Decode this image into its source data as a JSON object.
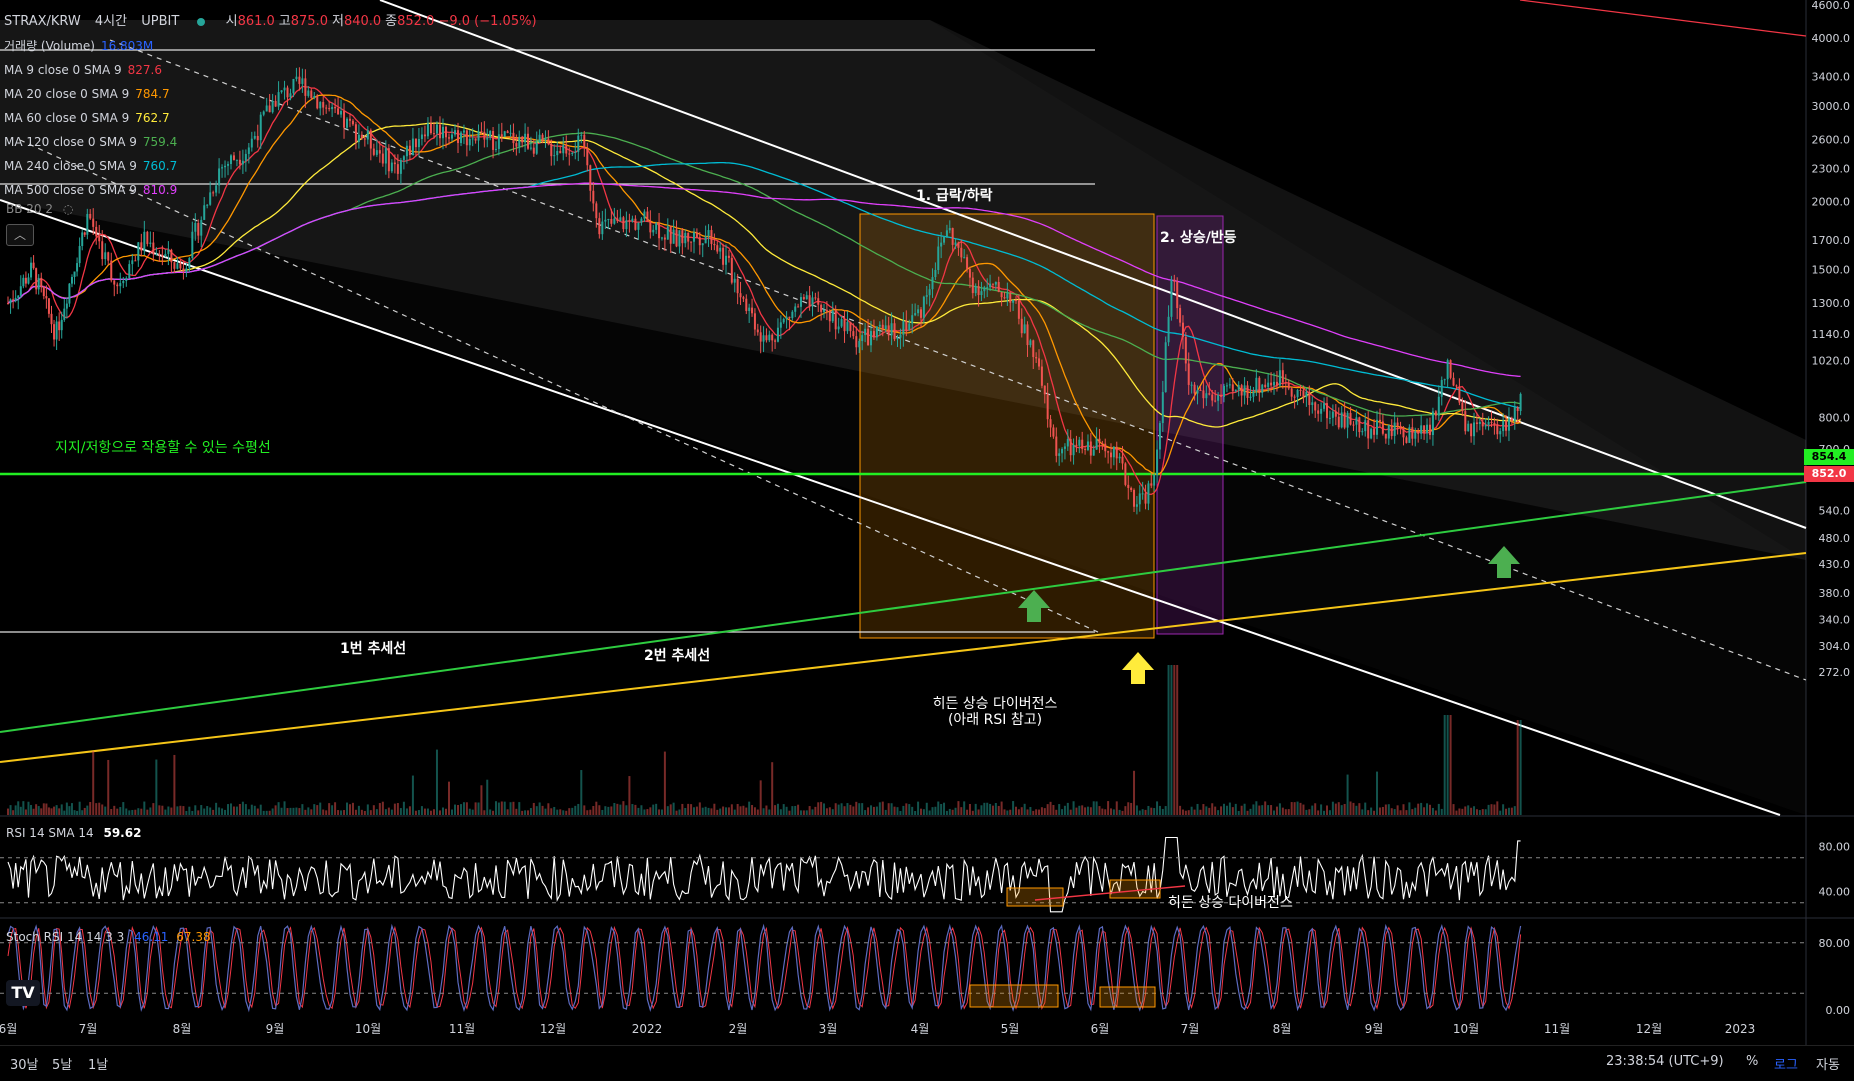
{
  "header": {
    "symbol": "STRAX/KRW",
    "interval": "4시간",
    "exchange": "UPBIT",
    "ohlc": [
      {
        "key": "시",
        "value": "861.0"
      },
      {
        "key": "고",
        "value": "875.0"
      },
      {
        "key": "저",
        "value": "840.0"
      },
      {
        "key": "종",
        "value": "852.0"
      }
    ],
    "change": "−9.0 (−1.05%)"
  },
  "legend": [
    {
      "label": "거래량 (Volume)",
      "value": "16.803M",
      "color": "#2962ff"
    },
    {
      "label": "MA 9 close 0 SMA 9",
      "value": "827.6",
      "color": "#f23645"
    },
    {
      "label": "MA 20 close 0 SMA 9",
      "value": "784.7",
      "color": "#ff9800"
    },
    {
      "label": "MA 60 close 0 SMA 9",
      "value": "762.7",
      "color": "#ffeb3b"
    },
    {
      "label": "MA 120 close 0 SMA 9",
      "value": "759.4",
      "color": "#4caf50"
    },
    {
      "label": "MA 240 close 0 SMA 9",
      "value": "760.7",
      "color": "#00bcd4"
    },
    {
      "label": "MA 500 close 0 SMA 9",
      "value": "810.9",
      "color": "#e040fb"
    }
  ],
  "bb_label": "BB 20 2",
  "rsi_header": {
    "label": "RSI 14 SMA 14",
    "value": "59.62"
  },
  "stoch_header": {
    "label": "Stoch RSI 14 14 3 3",
    "k": "46.11",
    "d": "67.38"
  },
  "annotations": {
    "crash": "1. 급락/하락",
    "rebound": "2. 상승/반등",
    "support": "지지/저항으로 작용할 수 있는 수평선",
    "trend1": "1번 추세선",
    "trend2": "2번 추세선",
    "divergence1": "히든 상승 다이버전스",
    "divergence2": "(아래 RSI 참고)",
    "divergence_rsi": "히든 상승 다이버전스"
  },
  "price_tags": {
    "upper": "854.4",
    "last": "852.0"
  },
  "bottom_bar": {
    "ranges": [
      "30날",
      "5날",
      "1날"
    ],
    "clock": "23:38:54 (UTC+9)",
    "percent": "%",
    "log": "로그",
    "auto": "자동"
  },
  "chart_data": {
    "type": "candlestick",
    "price_axis": {
      "scale": "log",
      "ticks": [
        "4600.0",
        "4000.0",
        "3400.0",
        "3000.0",
        "2600.0",
        "2300.0",
        "2000.0",
        "1700.0",
        "1500.0",
        "1300.0",
        "1140.0",
        "1020.0",
        "800.0",
        "700.0",
        "620.0",
        "540.0",
        "480.0",
        "430.0",
        "380.0",
        "340.0",
        "304.0",
        "272.0"
      ]
    },
    "time_axis": [
      "6월",
      "7월",
      "8월",
      "9월",
      "10월",
      "11월",
      "12월",
      "2022",
      "2월",
      "3월",
      "4월",
      "5월",
      "6월",
      "7월",
      "8월",
      "9월",
      "10월",
      "11월",
      "12월",
      "2023"
    ],
    "rsi_axis": {
      "ticks": [
        "80.00",
        "40.00"
      ],
      "bands": [
        70,
        30
      ]
    },
    "stoch_axis": {
      "ticks": [
        "80.00",
        "0.00"
      ],
      "bands": [
        80,
        20
      ]
    },
    "price_path": [
      [
        0.0,
        1300
      ],
      [
        0.3,
        1500
      ],
      [
        0.6,
        1140
      ],
      [
        1.0,
        1900
      ],
      [
        1.3,
        1400
      ],
      [
        1.6,
        1700
      ],
      [
        2.0,
        1500
      ],
      [
        2.4,
        2300
      ],
      [
        2.7,
        2500
      ],
      [
        3.0,
        3100
      ],
      [
        3.3,
        3300
      ],
      [
        3.6,
        2900
      ],
      [
        4.0,
        2600
      ],
      [
        4.3,
        2300
      ],
      [
        4.6,
        2750
      ],
      [
        5.0,
        2650
      ],
      [
        5.3,
        2600
      ],
      [
        5.6,
        2620
      ],
      [
        6.0,
        2500
      ],
      [
        6.3,
        2550
      ],
      [
        6.5,
        1800
      ],
      [
        7.0,
        1850
      ],
      [
        7.3,
        1700
      ],
      [
        7.7,
        1750
      ],
      [
        8.0,
        1400
      ],
      [
        8.3,
        1100
      ],
      [
        8.7,
        1300
      ],
      [
        9.0,
        1250
      ],
      [
        9.3,
        1120
      ],
      [
        9.7,
        1150
      ],
      [
        10.0,
        1250
      ],
      [
        10.3,
        1800
      ],
      [
        10.6,
        1400
      ],
      [
        11.0,
        1350
      ],
      [
        11.3,
        1000
      ],
      [
        11.5,
        700
      ],
      [
        11.8,
        700
      ],
      [
        12.1,
        720
      ],
      [
        12.4,
        560
      ],
      [
        12.6,
        600
      ],
      [
        12.8,
        1450
      ],
      [
        13.0,
        900
      ],
      [
        13.3,
        870
      ],
      [
        13.6,
        900
      ],
      [
        14.0,
        950
      ],
      [
        14.3,
        850
      ],
      [
        14.6,
        800
      ],
      [
        15.0,
        760
      ],
      [
        15.3,
        750
      ],
      [
        15.6,
        750
      ],
      [
        15.8,
        1000
      ],
      [
        16.0,
        760
      ],
      [
        16.4,
        760
      ],
      [
        16.6,
        852
      ]
    ],
    "levels": {
      "support_resistance": 852.0
    },
    "trendlines": [
      "1번 추세선",
      "2번 추세선"
    ]
  }
}
